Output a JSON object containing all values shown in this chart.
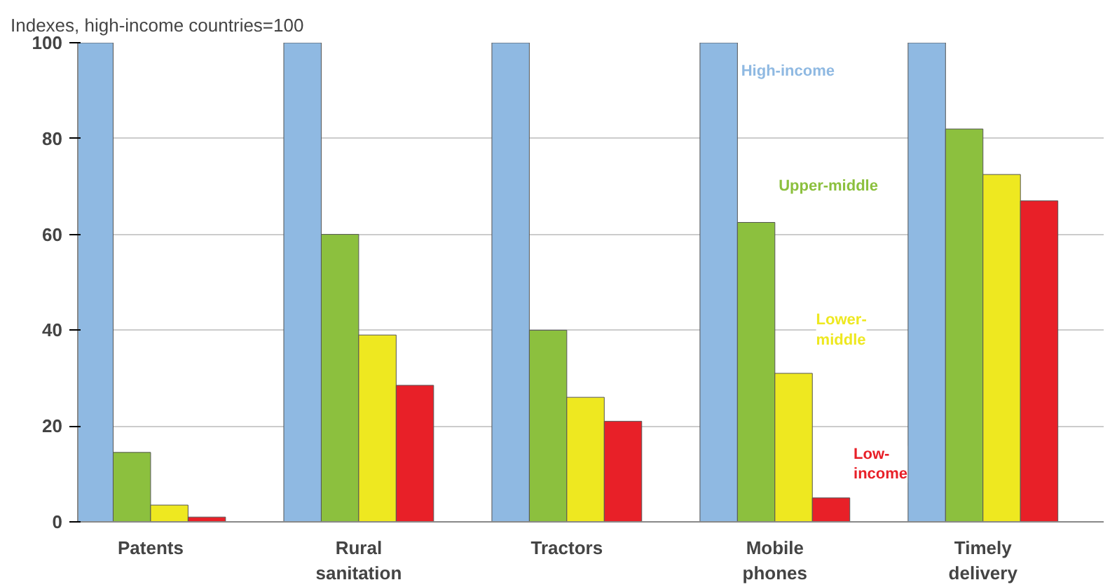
{
  "chart_data": {
    "type": "bar",
    "title": "Indexes, high-income countries=100",
    "categories": [
      "Patents",
      "Rural sanitation",
      "Tractors",
      "Mobile phones",
      "Timely delivery"
    ],
    "series": [
      {
        "name": "High-income",
        "color": "#8fb9e2",
        "values": [
          100,
          100,
          100,
          100,
          100
        ]
      },
      {
        "name": "Upper-middle",
        "color": "#8cc03e",
        "values": [
          14.5,
          60,
          40,
          62.5,
          82
        ]
      },
      {
        "name": "Lower-middle",
        "color": "#eee820",
        "values": [
          3.5,
          39,
          26,
          31,
          72.5
        ]
      },
      {
        "name": "Low-income",
        "color": "#e82028",
        "values": [
          1,
          28.5,
          21,
          5,
          67
        ]
      }
    ],
    "ylim": [
      0,
      100
    ],
    "yticks": [
      0,
      20,
      40,
      60,
      80,
      100
    ],
    "grid": "y"
  }
}
